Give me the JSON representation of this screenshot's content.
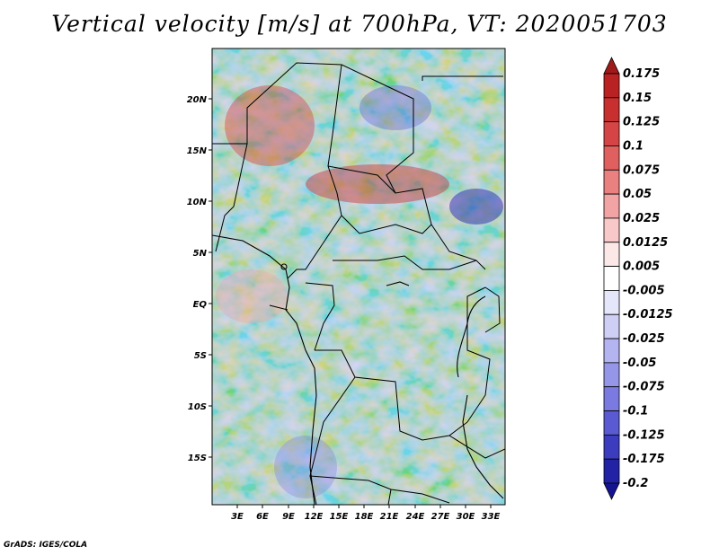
{
  "title": "Vertical velocity [m/s] at 700hPa, VT: 2020051703",
  "footer": "GrADS: IGES/COLA",
  "map": {
    "lat_labels": [
      "20N",
      "15N",
      "10N",
      "5N",
      "EQ",
      "5S",
      "10S",
      "15S"
    ],
    "lon_labels": [
      "3E",
      "6E",
      "9E",
      "12E",
      "15E",
      "18E",
      "21E",
      "24E",
      "27E",
      "30E",
      "33E"
    ]
  },
  "legend": {
    "levels": [
      "0.175",
      "0.15",
      "0.125",
      "0.1",
      "0.075",
      "0.05",
      "0.025",
      "0.0125",
      "0.005",
      "-0.005",
      "-0.0125",
      "-0.025",
      "-0.05",
      "-0.075",
      "-0.1",
      "-0.125",
      "-0.175",
      "-0.2"
    ],
    "colors": [
      "#a01a1a",
      "#b82222",
      "#c83030",
      "#d64545",
      "#e06060",
      "#ea8080",
      "#f2a4a4",
      "#f9c8c8",
      "#fde8e8",
      "#ffffff",
      "#e6e6fb",
      "#cfcff6",
      "#b4b4f0",
      "#9696e8",
      "#7a7ae0",
      "#5a5ad2",
      "#3c3cbe",
      "#2222a6",
      "#141490"
    ]
  }
}
